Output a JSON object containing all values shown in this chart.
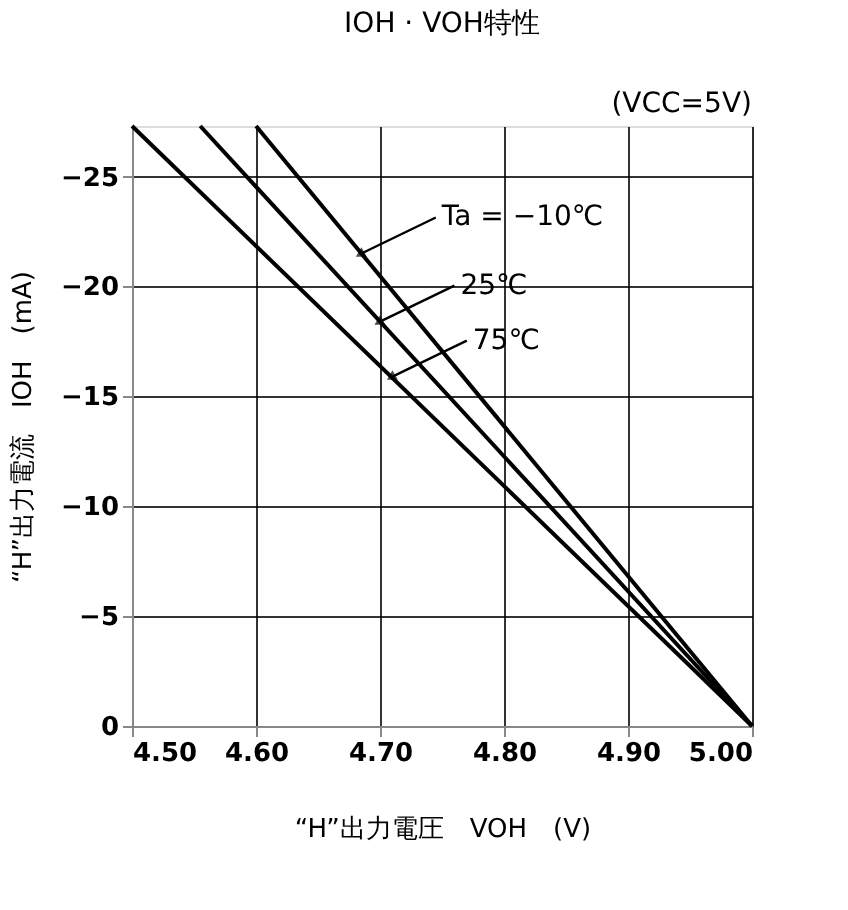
{
  "chart_data": {
    "type": "line",
    "title": "IOH · VOH特性",
    "subtitle": "(VCC=5V)",
    "xlabel": "“H”出力電圧　VOH　(V)",
    "ylabel": "“H”出力電流　IOH　(mA)",
    "xlim": [
      4.5,
      5.0
    ],
    "xticks": [
      {
        "value": 4.5,
        "label": "4.50"
      },
      {
        "value": 4.6,
        "label": "4.60"
      },
      {
        "value": 4.7,
        "label": "4.70"
      },
      {
        "value": 4.8,
        "label": "4.80"
      },
      {
        "value": 4.9,
        "label": "4.90"
      },
      {
        "value": 5.0,
        "label": "5.00"
      }
    ],
    "ylim": [
      0,
      -27.3
    ],
    "yticks": [
      0,
      -5,
      -10,
      -15,
      -20,
      -25
    ],
    "grid": true,
    "legend": false,
    "marker": "none",
    "line_style": "solid",
    "series": [
      {
        "color": "#000000",
        "x": [
          4.6,
          5.0
        ],
        "values": [
          -27.3,
          0
        ]
      },
      {
        "color": "#000000",
        "x": [
          4.555,
          5.0
        ],
        "values": [
          -27.3,
          0
        ]
      },
      {
        "color": "#000000",
        "x": [
          4.5,
          5.0
        ],
        "values": [
          -27.3,
          0
        ]
      }
    ],
    "annotations": [
      {
        "text": "Ta = −10℃",
        "x": 4.685,
        "y": -21.5
      },
      {
        "text": "25℃",
        "x": 4.7,
        "y": -18.4
      },
      {
        "text": "75℃",
        "x": 4.71,
        "y": -15.9
      }
    ]
  }
}
